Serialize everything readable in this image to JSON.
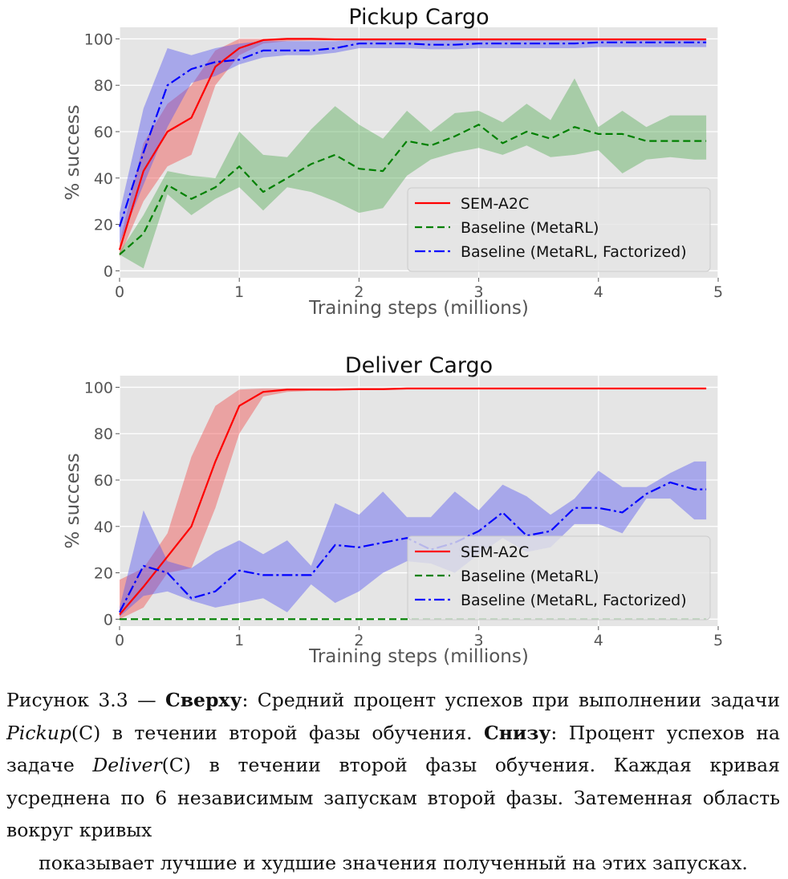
{
  "chart_data": [
    {
      "type": "line",
      "title": "Pickup Cargo",
      "xlabel": "Training steps (millions)",
      "ylabel": "% success",
      "xlim": [
        0,
        5
      ],
      "ylim": [
        -3,
        105
      ],
      "xticks": [
        0,
        1,
        2,
        3,
        4,
        5
      ],
      "yticks": [
        0,
        20,
        40,
        60,
        80,
        100
      ],
      "grid": true,
      "legend_position": "lower-right",
      "series": [
        {
          "name": "SEM-A2C",
          "color": "#ff0000",
          "style": "solid",
          "x": [
            0,
            0.2,
            0.4,
            0.6,
            0.8,
            1.0,
            1.2,
            1.4,
            1.6,
            1.8,
            2.0,
            2.2,
            2.4,
            2.6,
            2.8,
            3.0,
            3.2,
            3.4,
            3.6,
            3.8,
            4.0,
            4.2,
            4.4,
            4.6,
            4.8,
            4.9
          ],
          "values": [
            9,
            43,
            60,
            66,
            88,
            96,
            99.5,
            100,
            100,
            99.8,
            99.8,
            99.8,
            99.8,
            99.8,
            99.8,
            99.8,
            99.8,
            99.8,
            99.8,
            99.8,
            99.8,
            99.8,
            99.8,
            99.8,
            99.8,
            99.8
          ],
          "lower": [
            6,
            30,
            45,
            50,
            80,
            93,
            98,
            99,
            99.3,
            99.3,
            99.3,
            99.3,
            99.3,
            99.3,
            99.3,
            99.3,
            99.3,
            99.3,
            99.3,
            99.3,
            99.3,
            99.3,
            99.3,
            99.3,
            99.3,
            99.3
          ],
          "upper": [
            12,
            55,
            72,
            80,
            95,
            100,
            100,
            100,
            100,
            100,
            100,
            100,
            100,
            100,
            100,
            100,
            100,
            100,
            100,
            100,
            100,
            100,
            100,
            100,
            100,
            100
          ]
        },
        {
          "name": "Baseline (MetaRL)",
          "color": "#008000",
          "style": "dashed",
          "x": [
            0,
            0.2,
            0.4,
            0.6,
            0.8,
            1.0,
            1.2,
            1.4,
            1.6,
            1.8,
            2.0,
            2.2,
            2.4,
            2.6,
            2.8,
            3.0,
            3.2,
            3.4,
            3.6,
            3.8,
            4.0,
            4.2,
            4.4,
            4.6,
            4.8,
            4.9
          ],
          "values": [
            7,
            16,
            37,
            31,
            36,
            45,
            34,
            40,
            46,
            50,
            44,
            43,
            56,
            54,
            58,
            63,
            55,
            60,
            57,
            62,
            59,
            59,
            56,
            56,
            56,
            56
          ],
          "lower": [
            7,
            1,
            33,
            24,
            31,
            36,
            26,
            36,
            34,
            30,
            25,
            27,
            41,
            48,
            51,
            53,
            50,
            54,
            49,
            50,
            52,
            42,
            48,
            49,
            48,
            48
          ],
          "upper": [
            8,
            24,
            43,
            41,
            40,
            60,
            50,
            49,
            61,
            71,
            63,
            57,
            69,
            60,
            68,
            69,
            64,
            72,
            65,
            83,
            62,
            69,
            62,
            67,
            67,
            67
          ]
        },
        {
          "name": "Baseline (MetaRL, Factorized)",
          "color": "#0000ff",
          "style": "dashdot",
          "x": [
            0,
            0.2,
            0.4,
            0.6,
            0.8,
            1.0,
            1.2,
            1.4,
            1.6,
            1.8,
            2.0,
            2.2,
            2.4,
            2.6,
            2.8,
            3.0,
            3.2,
            3.4,
            3.6,
            3.8,
            4.0,
            4.2,
            4.4,
            4.6,
            4.8,
            4.9
          ],
          "values": [
            19,
            51,
            80,
            87,
            90,
            91,
            95,
            95,
            95,
            96,
            98,
            98,
            98,
            97.5,
            97.5,
            98,
            98,
            98,
            98,
            98,
            98.5,
            98.5,
            98.5,
            98.5,
            98.5,
            98.5
          ],
          "lower": [
            12,
            37,
            62,
            81,
            84,
            89,
            92,
            93,
            93,
            94,
            96,
            96,
            96,
            95.5,
            95.5,
            96,
            96,
            96,
            96,
            96,
            96.5,
            96.5,
            96.5,
            96.5,
            96.5,
            96.5
          ],
          "upper": [
            25,
            70,
            96,
            93,
            96,
            98,
            99,
            99,
            99,
            99,
            99.5,
            99.5,
            99.5,
            99.5,
            99.5,
            99.5,
            99.5,
            99.5,
            99.5,
            99.5,
            99.8,
            99.8,
            99.8,
            99.8,
            99.8,
            99.8
          ]
        }
      ]
    },
    {
      "type": "line",
      "title": "Deliver Cargo",
      "xlabel": "Training steps (millions)",
      "ylabel": "% success",
      "xlim": [
        0,
        5
      ],
      "ylim": [
        -3,
        105
      ],
      "xticks": [
        0,
        1,
        2,
        3,
        4,
        5
      ],
      "yticks": [
        0,
        20,
        40,
        60,
        80,
        100
      ],
      "grid": true,
      "legend_position": "lower-right",
      "series": [
        {
          "name": "SEM-A2C",
          "color": "#ff0000",
          "style": "solid",
          "x": [
            0,
            0.2,
            0.4,
            0.6,
            0.8,
            1.0,
            1.2,
            1.4,
            1.6,
            1.8,
            2.0,
            2.2,
            2.4,
            2.6,
            2.8,
            3.0,
            3.2,
            3.4,
            3.6,
            3.8,
            4.0,
            4.2,
            4.4,
            4.6,
            4.8,
            4.9
          ],
          "values": [
            2,
            14,
            27,
            40,
            68,
            92,
            98,
            99,
            99,
            99,
            99.2,
            99.2,
            99.5,
            99.5,
            99.5,
            99.5,
            99.5,
            99.5,
            99.5,
            99.5,
            99.5,
            99.5,
            99.5,
            99.5,
            99.5,
            99.5
          ],
          "lower": [
            0,
            5,
            20,
            22,
            48,
            80,
            96,
            98,
            98.5,
            98.5,
            98.8,
            98.8,
            99,
            99,
            99,
            99,
            99,
            99,
            99,
            99,
            99,
            99,
            99,
            99,
            99,
            99
          ],
          "upper": [
            17,
            22,
            37,
            70,
            92,
            99,
            99.5,
            99.5,
            99.5,
            99.5,
            99.7,
            99.7,
            99.8,
            99.8,
            99.8,
            99.8,
            99.8,
            99.8,
            99.8,
            99.8,
            99.8,
            99.8,
            99.8,
            99.8,
            99.8,
            99.8
          ]
        },
        {
          "name": "Baseline (MetaRL)",
          "color": "#008000",
          "style": "dashed",
          "x": [
            0,
            0.2,
            0.4,
            0.6,
            0.8,
            1.0,
            1.2,
            1.4,
            1.6,
            1.8,
            2.0,
            2.2,
            2.4,
            2.6,
            2.8,
            3.0,
            3.2,
            3.4,
            3.6,
            3.8,
            4.0,
            4.2,
            4.4,
            4.6,
            4.8,
            4.9
          ],
          "values": [
            0,
            0,
            0,
            0,
            0,
            0,
            0,
            0,
            0,
            0,
            0,
            0,
            0,
            0,
            0,
            0,
            0,
            0,
            0,
            0,
            0,
            0,
            0,
            0,
            0,
            0
          ],
          "lower": [
            0,
            0,
            0,
            0,
            0,
            0,
            0,
            0,
            0,
            0,
            0,
            0,
            0,
            0,
            0,
            0,
            0,
            0,
            0,
            0,
            0,
            0,
            0,
            0,
            0,
            0
          ],
          "upper": [
            0,
            0,
            0,
            0,
            0,
            0,
            0,
            0,
            0,
            0,
            0,
            0,
            0,
            0,
            0,
            0,
            0,
            0,
            0,
            0,
            0,
            0,
            0,
            0,
            0,
            0
          ]
        },
        {
          "name": "Baseline (MetaRL, Factorized)",
          "color": "#0000ff",
          "style": "dashdot",
          "x": [
            0,
            0.2,
            0.4,
            0.6,
            0.8,
            1.0,
            1.2,
            1.4,
            1.6,
            1.8,
            2.0,
            2.2,
            2.4,
            2.6,
            2.8,
            3.0,
            3.2,
            3.4,
            3.6,
            3.8,
            4.0,
            4.2,
            4.4,
            4.6,
            4.8,
            4.9
          ],
          "values": [
            3,
            23,
            20,
            9,
            12,
            21,
            19,
            19,
            19,
            32,
            31,
            33,
            35,
            30,
            33,
            38,
            46,
            36,
            38,
            48,
            48,
            46,
            54,
            59,
            56,
            56
          ],
          "lower": [
            1,
            10,
            12,
            8,
            5,
            7,
            9,
            3,
            15,
            7,
            12,
            20,
            25,
            24,
            20,
            28,
            35,
            29,
            31,
            41,
            41,
            37,
            52,
            52,
            43,
            43
          ],
          "upper": [
            5,
            47,
            25,
            22,
            29,
            34,
            28,
            34,
            23,
            50,
            45,
            55,
            44,
            44,
            55,
            47,
            58,
            53,
            45,
            52,
            64,
            57,
            57,
            63,
            68,
            68
          ]
        }
      ]
    }
  ],
  "caption": {
    "prefix": "Рисунок 3.3 — ",
    "top_label": "Сверху",
    "part1": ": Средний процент успехов при выполнении задачи ",
    "task1": "Pickup",
    "paren1": "(C) в течении второй фазы обучения. ",
    "bottom_label": "Снизу",
    "part2": ": Процент успехов на задаче ",
    "task2": "Deliver",
    "paren2": "(C) в течении второй фазы обучения. Каждая кривая усреднена по 6 независимым запускам второй фазы. Затеменная область вокруг кривых",
    "last_line": "показывает лучшие и худшие значения полученный на этих запусках."
  }
}
